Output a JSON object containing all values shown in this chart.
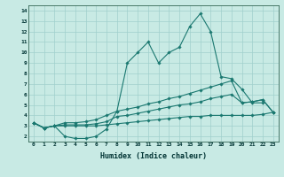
{
  "xlabel": "Humidex (Indice chaleur)",
  "xlim": [
    -0.5,
    23.5
  ],
  "ylim": [
    1.5,
    14.5
  ],
  "yticks": [
    2,
    3,
    4,
    5,
    6,
    7,
    8,
    9,
    10,
    11,
    12,
    13,
    14
  ],
  "xticks": [
    0,
    1,
    2,
    3,
    4,
    5,
    6,
    7,
    8,
    9,
    10,
    11,
    12,
    13,
    14,
    15,
    16,
    17,
    18,
    19,
    20,
    21,
    22,
    23
  ],
  "bg_color": "#c8eae4",
  "grid_color": "#a0d0cc",
  "line_color": "#1a7870",
  "lines": [
    {
      "x": [
        0,
        1,
        2,
        3,
        4,
        5,
        6,
        7,
        8,
        9,
        10,
        11,
        12,
        13,
        14,
        15,
        16,
        17,
        18,
        19,
        20,
        21,
        22
      ],
      "y": [
        3.3,
        2.8,
        3.0,
        2.0,
        1.8,
        1.8,
        2.0,
        2.7,
        4.4,
        9.0,
        10.0,
        11.0,
        9.0,
        10.0,
        10.5,
        12.5,
        13.7,
        12.0,
        7.7,
        7.5,
        6.5,
        5.2,
        5.2
      ]
    },
    {
      "x": [
        0,
        1,
        2,
        3,
        4,
        5,
        6,
        7,
        8,
        9,
        10,
        11,
        12,
        13,
        14,
        15,
        16,
        17,
        18,
        19,
        20,
        21,
        22,
        23
      ],
      "y": [
        3.3,
        2.8,
        3.0,
        3.3,
        3.3,
        3.4,
        3.6,
        4.0,
        4.4,
        4.6,
        4.8,
        5.1,
        5.3,
        5.6,
        5.8,
        6.1,
        6.4,
        6.7,
        7.0,
        7.3,
        5.2,
        5.3,
        5.5,
        4.3
      ]
    },
    {
      "x": [
        0,
        1,
        2,
        3,
        4,
        5,
        6,
        7,
        8,
        9,
        10,
        11,
        12,
        13,
        14,
        15,
        16,
        17,
        18,
        19,
        20,
        21,
        22,
        23
      ],
      "y": [
        3.3,
        2.8,
        3.0,
        3.1,
        3.1,
        3.1,
        3.2,
        3.4,
        3.9,
        4.0,
        4.2,
        4.4,
        4.6,
        4.8,
        5.0,
        5.1,
        5.3,
        5.6,
        5.8,
        6.0,
        5.2,
        5.3,
        5.5,
        4.3
      ]
    },
    {
      "x": [
        0,
        1,
        2,
        3,
        4,
        5,
        6,
        7,
        8,
        9,
        10,
        11,
        12,
        13,
        14,
        15,
        16,
        17,
        18,
        19,
        20,
        21,
        22,
        23
      ],
      "y": [
        3.3,
        2.8,
        3.0,
        3.0,
        3.0,
        3.0,
        3.0,
        3.1,
        3.2,
        3.3,
        3.4,
        3.5,
        3.6,
        3.7,
        3.8,
        3.9,
        3.9,
        4.0,
        4.0,
        4.0,
        4.0,
        4.0,
        4.1,
        4.3
      ]
    }
  ]
}
